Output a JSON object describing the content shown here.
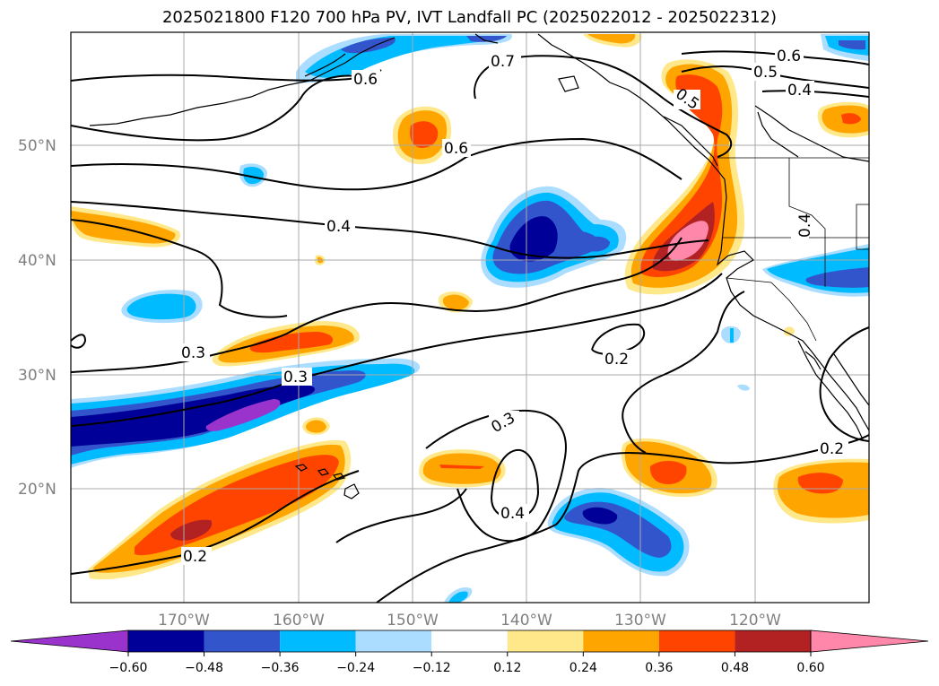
{
  "title": "2025021800 F120 700 hPa PV, IVT Landfall PC (2025022012 - 2025022312)",
  "lat_labels": [
    "50°N",
    "40°N",
    "30°N",
    "20°N"
  ],
  "lon_labels": [
    "170°W",
    "160°W",
    "150°W",
    "140°W",
    "130°W",
    "120°W"
  ],
  "contour_labels": [
    "0.7",
    "0.6",
    "0.6",
    "0.6",
    "0.5",
    "0.5",
    "0.4",
    "0.4",
    "0.4",
    "0.4",
    "0.3",
    "0.3",
    "0.3",
    "0.2",
    "0.2",
    "0.2"
  ],
  "colorbar": {
    "ticks": [
      "−0.60",
      "−0.48",
      "−0.36",
      "−0.24",
      "−0.12",
      "0.12",
      "0.24",
      "0.36",
      "0.48",
      "0.60"
    ],
    "colors": [
      "#9933cc",
      "#000099",
      "#3355cc",
      "#00bbff",
      "#aaddff",
      "#ffffff",
      "#ffe88a",
      "#ffa500",
      "#ff4400",
      "#b22222",
      "#ff88aa"
    ]
  },
  "fill_colors": {
    "purple": "#9933cc",
    "navy": "#000099",
    "blue": "#3355cc",
    "sky": "#00bbff",
    "lightblue": "#aaddff",
    "lightyellow": "#ffe88a",
    "orange": "#ffa500",
    "redorange": "#ff4400",
    "darkred": "#b22222",
    "pink": "#ff88aa"
  }
}
